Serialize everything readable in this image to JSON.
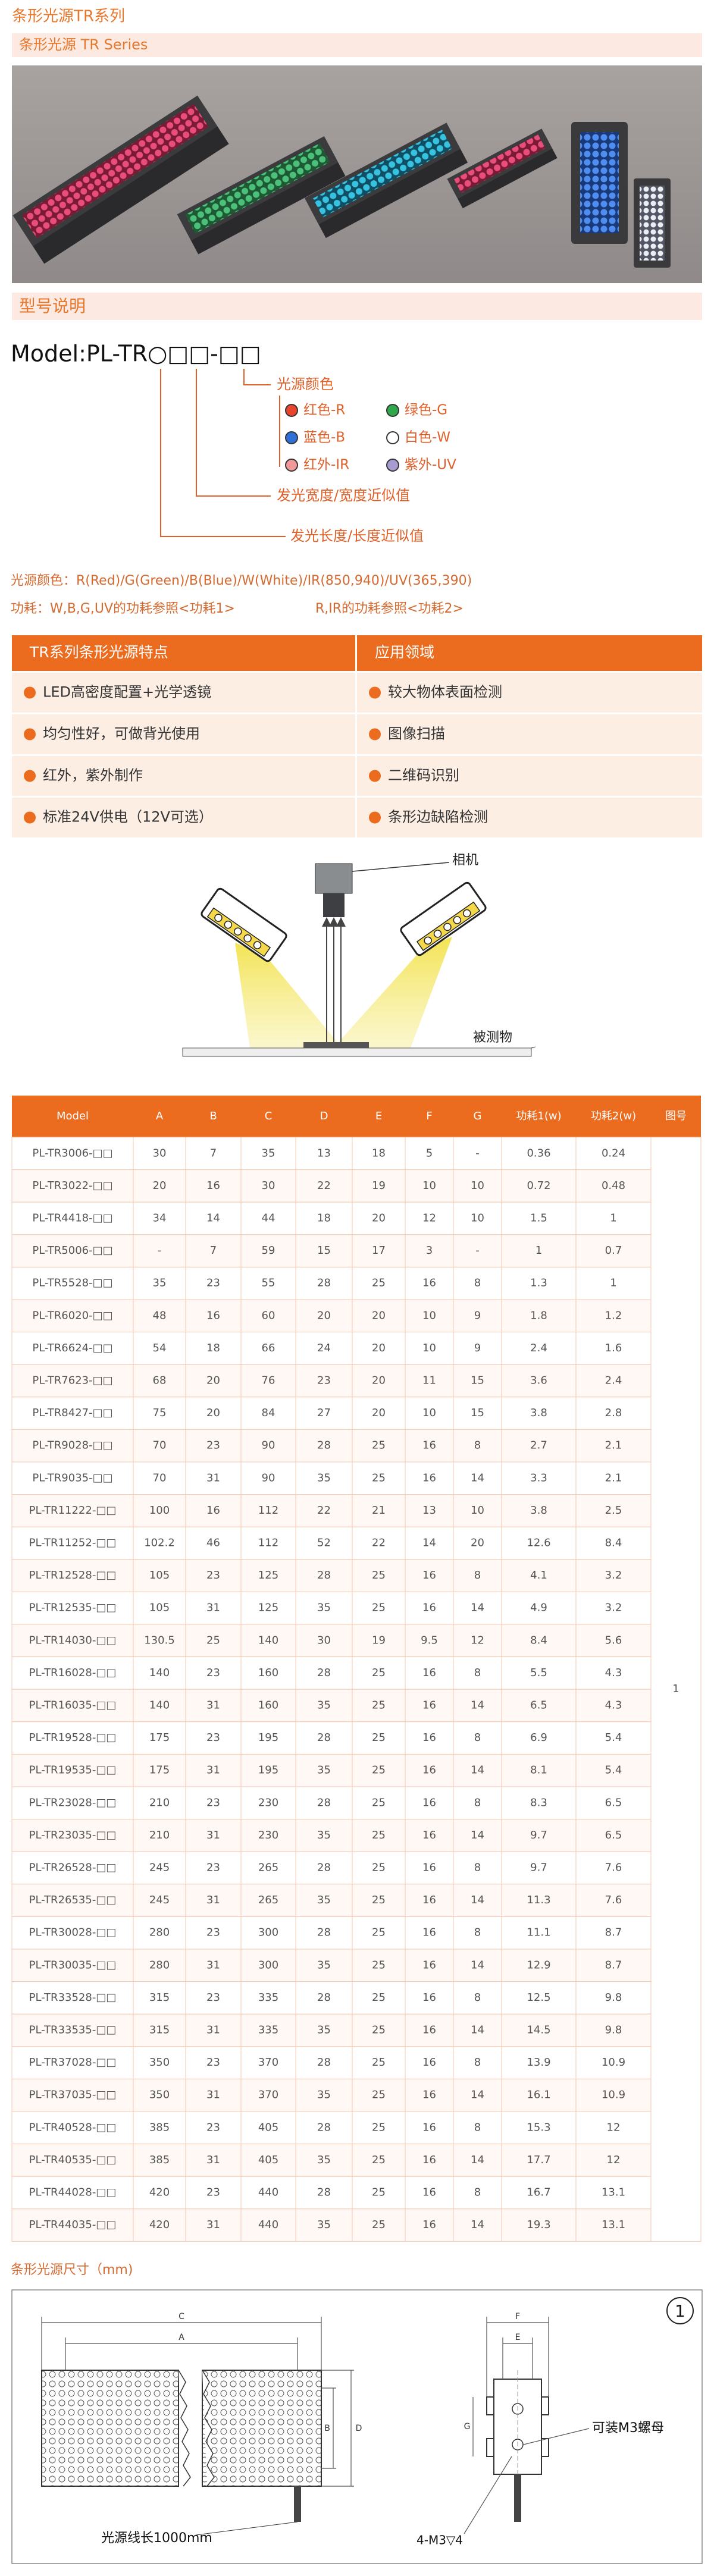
{
  "header": {
    "title": "条形光源TR系列",
    "subtitle": "条形光源 TR Series"
  },
  "model_section": {
    "title": "型号说明",
    "model_code": "Model:PL-TR○□□-□□",
    "color_label": "光源颜色",
    "colors": [
      {
        "label": "红色-R",
        "color": "#e8452c"
      },
      {
        "label": "绿色-G",
        "color": "#2ea84a"
      },
      {
        "label": "蓝色-B",
        "color": "#2f6fd8"
      },
      {
        "label": "白色-W",
        "color": "#ffffff"
      },
      {
        "label": "红外-IR",
        "color": "#f29a9a"
      },
      {
        "label": "紫外-UV",
        "color": "#a79bd0"
      }
    ],
    "width_label": "发光宽度/宽度近似值",
    "length_label": "发光长度/长度近似值",
    "color_note": "光源颜色：R(Red)/G(Green)/B(Blue)/W(White)/IR(850,940)/UV(365,390)",
    "power_note_1": "功耗：W,B,G,UV的功耗参照<功耗1>",
    "power_note_2": "R,IR的功耗参照<功耗2>"
  },
  "features": {
    "headers": [
      "TR系列条形光源特点",
      "应用领域"
    ],
    "rows": [
      [
        "LED高密度配置+光学透镜",
        "较大物体表面检测"
      ],
      [
        "均匀性好，可做背光使用",
        "图像扫描"
      ],
      [
        "红外，紫外制作",
        "二维码识别"
      ],
      [
        "标准24V供电（12V可选）",
        "条形边缺陷检测"
      ]
    ]
  },
  "setup_diagram": {
    "camera_label": "相机",
    "object_label": "被测物"
  },
  "spec_table": {
    "headers": [
      "Model",
      "A",
      "B",
      "C",
      "D",
      "E",
      "F",
      "G",
      "功耗1(w)",
      "功耗2(w)",
      "图号"
    ],
    "rows": [
      [
        "PL-TR3006-□□",
        "30",
        "7",
        "35",
        "13",
        "18",
        "5",
        "-",
        "0.36",
        "0.24"
      ],
      [
        "PL-TR3022-□□",
        "20",
        "16",
        "30",
        "22",
        "19",
        "10",
        "10",
        "0.72",
        "0.48"
      ],
      [
        "PL-TR4418-□□",
        "34",
        "14",
        "44",
        "18",
        "20",
        "12",
        "10",
        "1.5",
        "1"
      ],
      [
        "PL-TR5006-□□",
        "-",
        "7",
        "59",
        "15",
        "17",
        "3",
        "-",
        "1",
        "0.7"
      ],
      [
        "PL-TR5528-□□",
        "35",
        "23",
        "55",
        "28",
        "25",
        "16",
        "8",
        "1.3",
        "1"
      ],
      [
        "PL-TR6020-□□",
        "48",
        "16",
        "60",
        "20",
        "20",
        "10",
        "9",
        "1.8",
        "1.2"
      ],
      [
        "PL-TR6624-□□",
        "54",
        "18",
        "66",
        "24",
        "20",
        "10",
        "9",
        "2.4",
        "1.6"
      ],
      [
        "PL-TR7623-□□",
        "68",
        "20",
        "76",
        "23",
        "20",
        "11",
        "15",
        "3.6",
        "2.4"
      ],
      [
        "PL-TR8427-□□",
        "75",
        "20",
        "84",
        "27",
        "20",
        "10",
        "15",
        "3.8",
        "2.8"
      ],
      [
        "PL-TR9028-□□",
        "70",
        "23",
        "90",
        "28",
        "25",
        "16",
        "8",
        "2.7",
        "2.1"
      ],
      [
        "PL-TR9035-□□",
        "70",
        "31",
        "90",
        "35",
        "25",
        "16",
        "14",
        "3.3",
        "2.1"
      ],
      [
        "PL-TR11222-□□",
        "100",
        "16",
        "112",
        "22",
        "21",
        "13",
        "10",
        "3.8",
        "2.5"
      ],
      [
        "PL-TR11252-□□",
        "102.2",
        "46",
        "112",
        "52",
        "22",
        "14",
        "20",
        "12.6",
        "8.4"
      ],
      [
        "PL-TR12528-□□",
        "105",
        "23",
        "125",
        "28",
        "25",
        "16",
        "8",
        "4.1",
        "3.2"
      ],
      [
        "PL-TR12535-□□",
        "105",
        "31",
        "125",
        "35",
        "25",
        "16",
        "14",
        "4.9",
        "3.2"
      ],
      [
        "PL-TR14030-□□",
        "130.5",
        "25",
        "140",
        "30",
        "19",
        "9.5",
        "12",
        "8.4",
        "5.6"
      ],
      [
        "PL-TR16028-□□",
        "140",
        "23",
        "160",
        "28",
        "25",
        "16",
        "8",
        "5.5",
        "4.3"
      ],
      [
        "PL-TR16035-□□",
        "140",
        "31",
        "160",
        "35",
        "25",
        "16",
        "14",
        "6.5",
        "4.3"
      ],
      [
        "PL-TR19528-□□",
        "175",
        "23",
        "195",
        "28",
        "25",
        "16",
        "8",
        "6.9",
        "5.4"
      ],
      [
        "PL-TR19535-□□",
        "175",
        "31",
        "195",
        "35",
        "25",
        "16",
        "14",
        "8.1",
        "5.4"
      ],
      [
        "PL-TR23028-□□",
        "210",
        "23",
        "230",
        "28",
        "25",
        "16",
        "8",
        "8.3",
        "6.5"
      ],
      [
        "PL-TR23035-□□",
        "210",
        "31",
        "230",
        "35",
        "25",
        "16",
        "14",
        "9.7",
        "6.5"
      ],
      [
        "PL-TR26528-□□",
        "245",
        "23",
        "265",
        "28",
        "25",
        "16",
        "8",
        "9.7",
        "7.6"
      ],
      [
        "PL-TR26535-□□",
        "245",
        "31",
        "265",
        "35",
        "25",
        "16",
        "14",
        "11.3",
        "7.6"
      ],
      [
        "PL-TR30028-□□",
        "280",
        "23",
        "300",
        "28",
        "25",
        "16",
        "8",
        "11.1",
        "8.7"
      ],
      [
        "PL-TR30035-□□",
        "280",
        "31",
        "300",
        "35",
        "25",
        "16",
        "14",
        "12.9",
        "8.7"
      ],
      [
        "PL-TR33528-□□",
        "315",
        "23",
        "335",
        "28",
        "25",
        "16",
        "8",
        "12.5",
        "9.8"
      ],
      [
        "PL-TR33535-□□",
        "315",
        "31",
        "335",
        "35",
        "25",
        "16",
        "14",
        "14.5",
        "9.8"
      ],
      [
        "PL-TR37028-□□",
        "350",
        "23",
        "370",
        "28",
        "25",
        "16",
        "8",
        "13.9",
        "10.9"
      ],
      [
        "PL-TR37035-□□",
        "350",
        "31",
        "370",
        "35",
        "25",
        "16",
        "14",
        "16.1",
        "10.9"
      ],
      [
        "PL-TR40528-□□",
        "385",
        "23",
        "405",
        "28",
        "25",
        "16",
        "8",
        "15.3",
        "12"
      ],
      [
        "PL-TR40535-□□",
        "385",
        "31",
        "405",
        "35",
        "25",
        "16",
        "14",
        "17.7",
        "12"
      ],
      [
        "PL-TR44028-□□",
        "420",
        "23",
        "440",
        "28",
        "25",
        "16",
        "8",
        "16.7",
        "13.1"
      ],
      [
        "PL-TR44035-□□",
        "420",
        "31",
        "440",
        "35",
        "25",
        "16",
        "14",
        "19.3",
        "13.1"
      ]
    ],
    "figure_no": "1"
  },
  "dimensions": {
    "title": "条形光源尺寸（mm)",
    "figure_no": "1",
    "front_letters": [
      "C",
      "A",
      "B",
      "D"
    ],
    "side_letters": [
      "F",
      "E",
      "G"
    ],
    "cable_note": "光源线长1000mm",
    "nut_note": "可装M3螺母",
    "screw_note": "4-M3▽4"
  }
}
